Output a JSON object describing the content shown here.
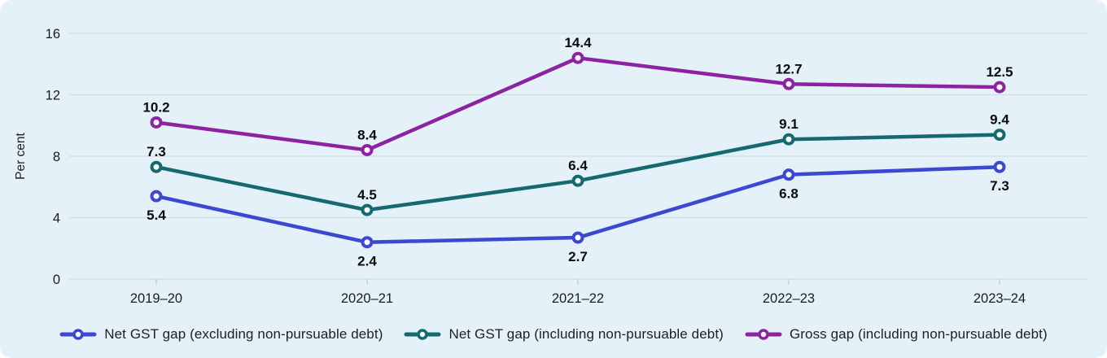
{
  "chart_data": {
    "type": "line",
    "title": "",
    "ylabel": "Per cent",
    "xlabel": "",
    "ylim": [
      0,
      16
    ],
    "y_ticks": [
      0,
      4,
      8,
      12,
      16
    ],
    "grid": "horizontal",
    "legend_position": "bottom",
    "categories": [
      "2019–20",
      "2020–21",
      "2021–22",
      "2022–23",
      "2023–24"
    ],
    "series": [
      {
        "name": "Net GST gap (excluding non-pursuable debt)",
        "values": [
          5.4,
          2.4,
          2.7,
          6.8,
          7.3
        ],
        "color": "#3b48d0",
        "label_position": "below"
      },
      {
        "name": "Net GST gap (including non-pursuable debt)",
        "values": [
          7.3,
          4.5,
          6.4,
          9.1,
          9.4
        ],
        "color": "#15696f",
        "label_position": "above"
      },
      {
        "name": "Gross gap (including non-pursuable debt)",
        "values": [
          10.2,
          8.4,
          14.4,
          12.7,
          12.5
        ],
        "color": "#8d23a0",
        "label_position": "above"
      }
    ],
    "colors": {
      "panel_background": "#e4f1f8",
      "gridline": "#d2dde2",
      "tick_mark": "#c3ced5",
      "axis_text": "#1a1c1d",
      "data_label_text": "#0a0b0c",
      "marker_fill": "#ffffff"
    }
  }
}
